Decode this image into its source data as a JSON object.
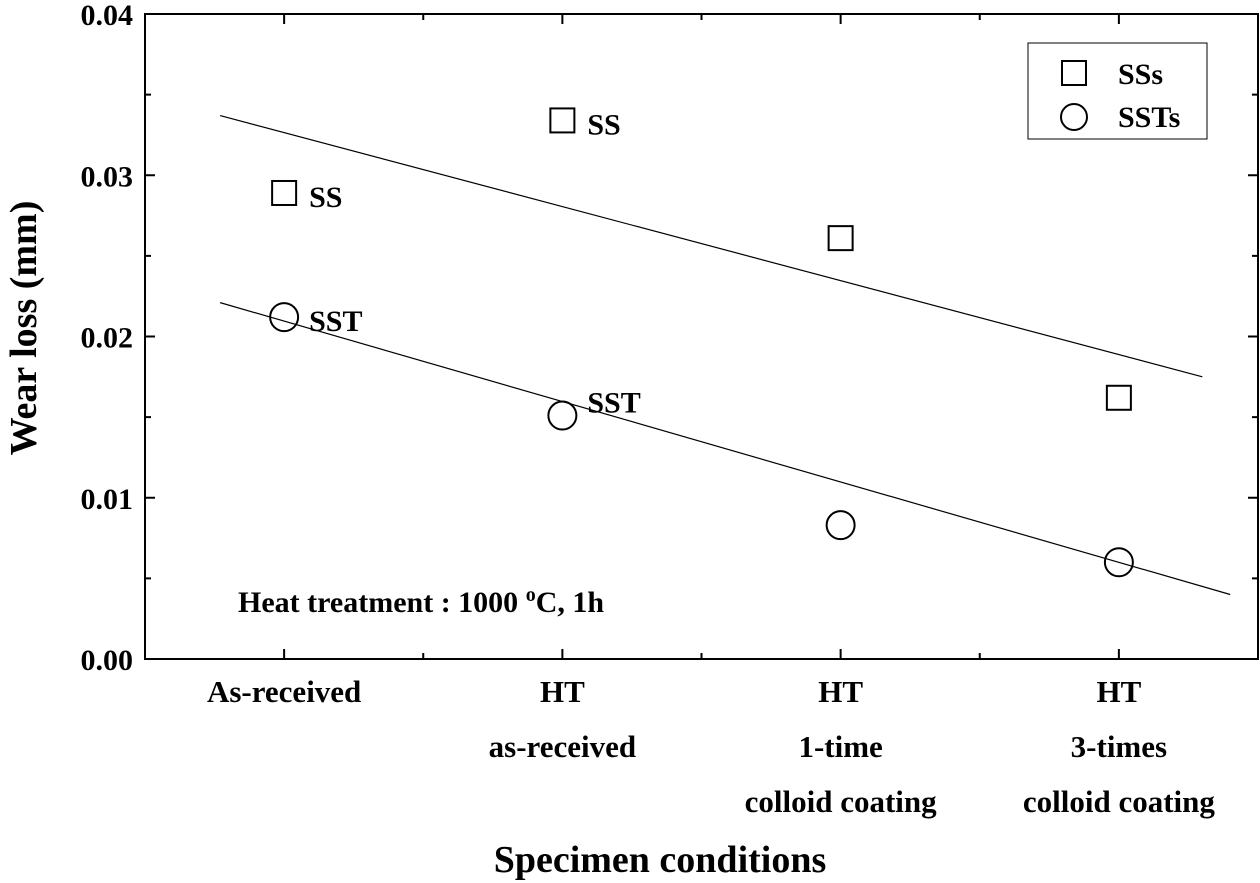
{
  "chart_data": {
    "type": "scatter",
    "xlabel": "Specimen conditions",
    "ylabel": "Wear loss (mm)",
    "ylim": [
      0,
      0.04
    ],
    "xlim": [
      -0.5,
      3.5
    ],
    "yticks": [
      "0.00",
      "0.01",
      "0.02",
      "0.03",
      "0.04"
    ],
    "categories": [
      [
        "As-received"
      ],
      [
        "HT",
        "as-received"
      ],
      [
        "HT",
        "1-time",
        "colloid coating"
      ],
      [
        "HT",
        "3-times",
        "colloid coating"
      ]
    ],
    "series": [
      {
        "name": "SSs",
        "marker": "square",
        "x": [
          0,
          1,
          2,
          3
        ],
        "values": [
          0.0289,
          0.0334,
          0.0261,
          0.0162
        ],
        "point_labels": [
          "SS",
          "SS",
          "",
          ""
        ],
        "trendline": {
          "x": [
            -0.23,
            3.3
          ],
          "y": [
            0.0337,
            0.0175
          ]
        }
      },
      {
        "name": "SSTs",
        "marker": "circle",
        "x": [
          0,
          1,
          2,
          3
        ],
        "values": [
          0.0212,
          0.0151,
          0.0083,
          0.006
        ],
        "point_labels": [
          "SST",
          "SST",
          "",
          ""
        ],
        "trendline": {
          "x": [
            -0.23,
            3.4
          ],
          "y": [
            0.0221,
            0.004
          ]
        }
      }
    ],
    "legend": {
      "position": "top-right",
      "entries": [
        "SSs",
        "SSTs"
      ]
    },
    "annotation": {
      "prefix": "Heat treatment : 1000 ",
      "superscript": "o",
      "suffix": "C, 1h"
    },
    "colors": {
      "line": "#000000",
      "background": "#ffffff"
    }
  }
}
